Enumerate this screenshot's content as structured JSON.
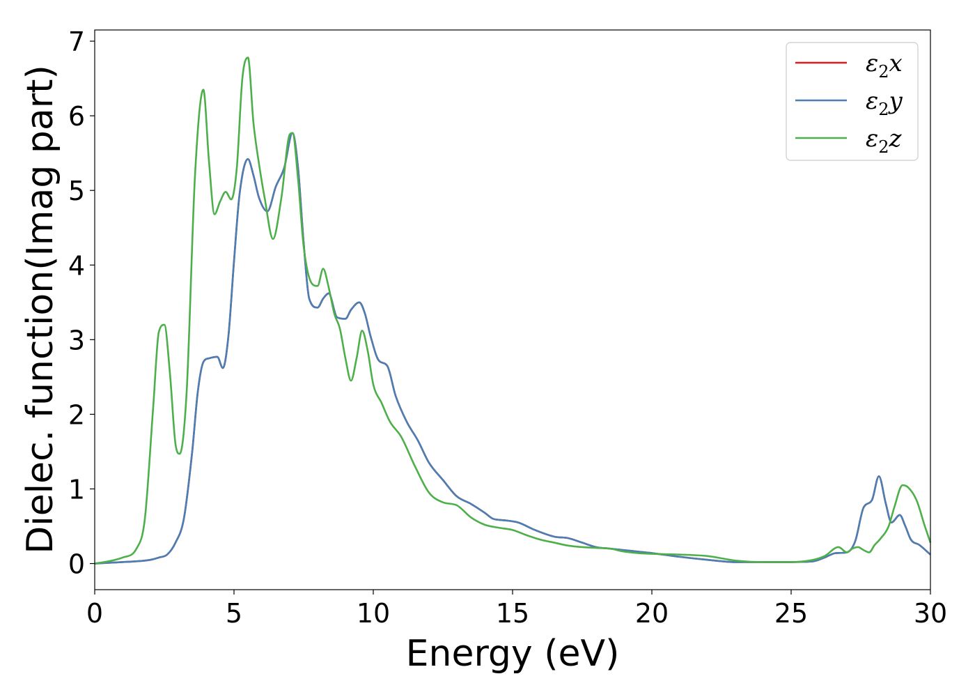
{
  "chart_data": {
    "type": "line",
    "title": "",
    "xlabel": "Energy (eV)",
    "ylabel": "Dielec. function(Imag part)",
    "xlim": [
      0,
      30
    ],
    "ylim": [
      -0.35,
      7.15
    ],
    "xticks": [
      0,
      5,
      10,
      15,
      20,
      25,
      30
    ],
    "yticks": [
      0,
      1,
      2,
      3,
      4,
      5,
      6,
      7
    ],
    "grid": false,
    "legend_position": "top-right",
    "series": [
      {
        "name": "ε2x",
        "legend_main": "ε",
        "legend_sub": "2",
        "legend_suffix": "x",
        "color": "#e41a1c",
        "x": [
          0,
          0.5,
          1,
          1.5,
          2,
          2.3,
          2.6,
          2.9,
          3.2,
          3.5,
          3.7,
          3.9,
          4.1,
          4.4,
          4.6,
          4.8,
          5,
          5.2,
          5.5,
          5.7,
          5.9,
          6.2,
          6.5,
          6.8,
          7.1,
          7.3,
          7.5,
          7.7,
          8,
          8.2,
          8.4,
          8.7,
          9,
          9.2,
          9.5,
          9.7,
          9.9,
          10.2,
          10.5,
          10.8,
          11.2,
          11.6,
          12,
          12.5,
          13,
          13.5,
          14,
          14.3,
          14.7,
          15.2,
          15.8,
          16.5,
          17,
          17.5,
          18,
          18.5,
          19,
          19.5,
          20,
          21,
          22,
          23,
          24,
          25,
          25.8,
          26.2,
          26.6,
          27,
          27.3,
          27.6,
          27.9,
          28.15,
          28.4,
          28.6,
          28.9,
          29.1,
          29.3,
          29.6,
          30
        ],
        "values": [
          0,
          0.01,
          0.02,
          0.03,
          0.05,
          0.08,
          0.12,
          0.28,
          0.6,
          1.5,
          2.3,
          2.7,
          2.75,
          2.77,
          2.62,
          3.05,
          4.05,
          4.95,
          5.42,
          5.2,
          4.9,
          4.72,
          5.05,
          5.3,
          5.77,
          5.3,
          4.3,
          3.55,
          3.43,
          3.55,
          3.62,
          3.3,
          3.28,
          3.4,
          3.5,
          3.35,
          3.05,
          2.72,
          2.65,
          2.25,
          1.9,
          1.65,
          1.35,
          1.12,
          0.9,
          0.8,
          0.68,
          0.6,
          0.58,
          0.55,
          0.45,
          0.36,
          0.34,
          0.28,
          0.22,
          0.2,
          0.18,
          0.16,
          0.14,
          0.09,
          0.05,
          0.02,
          0.02,
          0.02,
          0.03,
          0.08,
          0.14,
          0.15,
          0.3,
          0.75,
          0.85,
          1.17,
          0.8,
          0.55,
          0.65,
          0.5,
          0.32,
          0.25,
          0.12
        ]
      },
      {
        "name": "ε2y",
        "legend_main": "ε",
        "legend_sub": "2",
        "legend_suffix": "y",
        "color": "#4a7fb5",
        "x": [
          0,
          0.5,
          1,
          1.5,
          2,
          2.3,
          2.6,
          2.9,
          3.2,
          3.5,
          3.7,
          3.9,
          4.1,
          4.4,
          4.6,
          4.8,
          5,
          5.2,
          5.5,
          5.7,
          5.9,
          6.2,
          6.5,
          6.8,
          7.1,
          7.3,
          7.5,
          7.7,
          8,
          8.2,
          8.4,
          8.7,
          9,
          9.2,
          9.5,
          9.7,
          9.9,
          10.2,
          10.5,
          10.8,
          11.2,
          11.6,
          12,
          12.5,
          13,
          13.5,
          14,
          14.3,
          14.7,
          15.2,
          15.8,
          16.5,
          17,
          17.5,
          18,
          18.5,
          19,
          19.5,
          20,
          21,
          22,
          23,
          24,
          25,
          25.8,
          26.2,
          26.6,
          27,
          27.3,
          27.6,
          27.9,
          28.15,
          28.4,
          28.6,
          28.9,
          29.1,
          29.3,
          29.6,
          30
        ],
        "values": [
          0,
          0.01,
          0.02,
          0.03,
          0.05,
          0.08,
          0.12,
          0.28,
          0.6,
          1.5,
          2.3,
          2.7,
          2.75,
          2.77,
          2.62,
          3.05,
          4.05,
          4.95,
          5.42,
          5.2,
          4.9,
          4.72,
          5.05,
          5.3,
          5.77,
          5.3,
          4.3,
          3.55,
          3.43,
          3.55,
          3.62,
          3.3,
          3.28,
          3.4,
          3.5,
          3.35,
          3.05,
          2.72,
          2.65,
          2.25,
          1.9,
          1.65,
          1.35,
          1.12,
          0.9,
          0.8,
          0.68,
          0.6,
          0.58,
          0.55,
          0.45,
          0.36,
          0.34,
          0.28,
          0.22,
          0.2,
          0.18,
          0.16,
          0.14,
          0.09,
          0.05,
          0.02,
          0.02,
          0.02,
          0.03,
          0.08,
          0.14,
          0.15,
          0.3,
          0.75,
          0.85,
          1.17,
          0.8,
          0.55,
          0.65,
          0.5,
          0.32,
          0.25,
          0.12
        ]
      },
      {
        "name": "ε2z",
        "legend_main": "ε",
        "legend_sub": "2",
        "legend_suffix": "z",
        "color": "#4daf4a",
        "x": [
          0,
          0.5,
          1,
          1.5,
          1.8,
          2.1,
          2.3,
          2.5,
          2.7,
          2.9,
          3.05,
          3.3,
          3.6,
          3.9,
          4.1,
          4.3,
          4.5,
          4.7,
          4.9,
          5.1,
          5.3,
          5.5,
          5.7,
          5.9,
          6.1,
          6.4,
          6.7,
          7,
          7.1,
          7.3,
          7.5,
          7.8,
          8,
          8.2,
          8.4,
          8.6,
          8.8,
          9,
          9.2,
          9.4,
          9.6,
          9.8,
          10,
          10.3,
          10.6,
          11,
          11.5,
          12,
          12.5,
          13,
          13.5,
          14,
          14.5,
          15,
          15.5,
          16,
          16.5,
          17,
          17.5,
          18,
          18.5,
          19,
          19.5,
          20,
          21,
          22,
          23,
          24,
          25,
          25.8,
          26.2,
          26.7,
          27,
          27.2,
          27.4,
          27.6,
          27.8,
          28,
          28.2,
          28.5,
          28.7,
          29,
          29.2,
          29.5,
          29.8,
          30
        ],
        "values": [
          0,
          0.03,
          0.08,
          0.2,
          0.6,
          2.1,
          3.1,
          3.2,
          2.55,
          1.6,
          1.47,
          2.3,
          5.2,
          6.35,
          5.4,
          4.68,
          4.85,
          4.98,
          4.88,
          5.3,
          6.5,
          6.78,
          5.9,
          5.35,
          4.9,
          4.35,
          4.9,
          5.75,
          5.77,
          5.15,
          4.25,
          3.75,
          3.72,
          3.95,
          3.7,
          3.35,
          3.15,
          2.75,
          2.45,
          2.75,
          3.12,
          2.85,
          2.4,
          2.15,
          1.9,
          1.7,
          1.3,
          0.95,
          0.82,
          0.78,
          0.62,
          0.52,
          0.48,
          0.45,
          0.38,
          0.32,
          0.28,
          0.24,
          0.22,
          0.21,
          0.2,
          0.16,
          0.14,
          0.13,
          0.12,
          0.1,
          0.04,
          0.02,
          0.02,
          0.05,
          0.1,
          0.22,
          0.15,
          0.2,
          0.22,
          0.18,
          0.15,
          0.25,
          0.33,
          0.5,
          0.75,
          1.05,
          1.02,
          0.85,
          0.5,
          0.28
        ]
      }
    ]
  }
}
